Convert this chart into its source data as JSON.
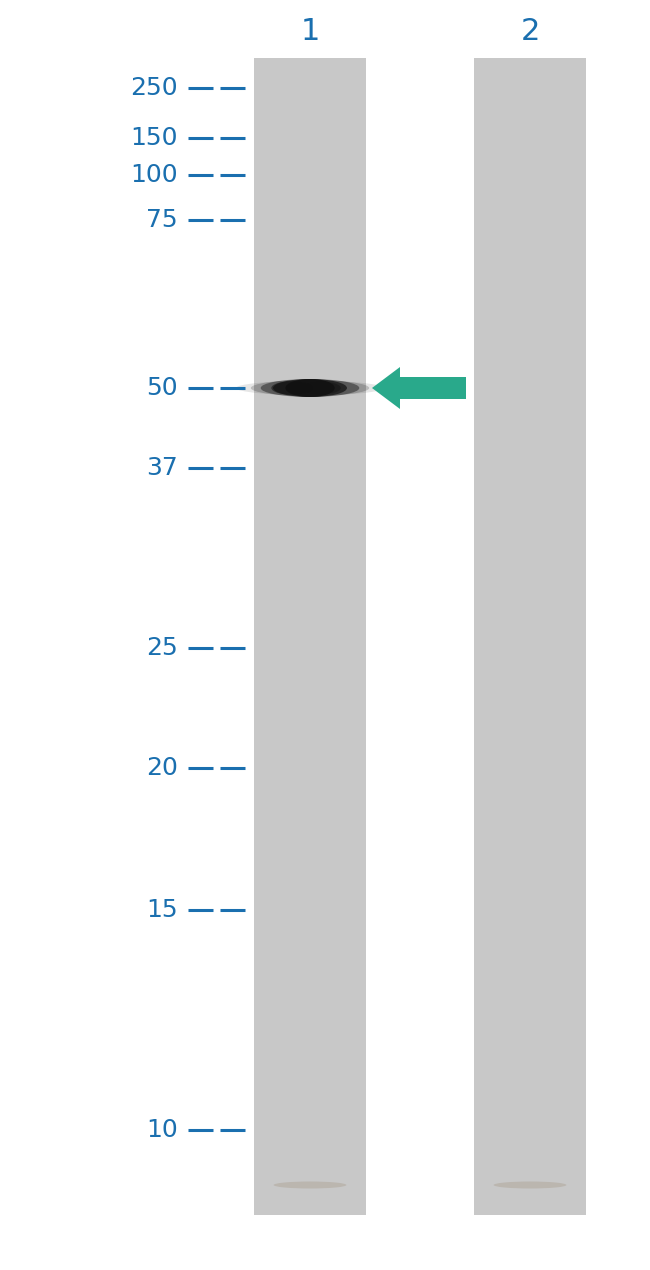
{
  "background_color": "#ffffff",
  "gel_bg_color": "#c8c8c8",
  "lane_labels": [
    "1",
    "2"
  ],
  "mw_markers": [
    250,
    150,
    100,
    75,
    50,
    37,
    25,
    20,
    15,
    10
  ],
  "mw_label_color": "#1a6faf",
  "lane_label_color": "#1a6faf",
  "band_mw": 50,
  "band_color": "#111111",
  "arrow_color": "#29a98b",
  "fig_width": 6.5,
  "fig_height": 12.7,
  "dpi": 100
}
